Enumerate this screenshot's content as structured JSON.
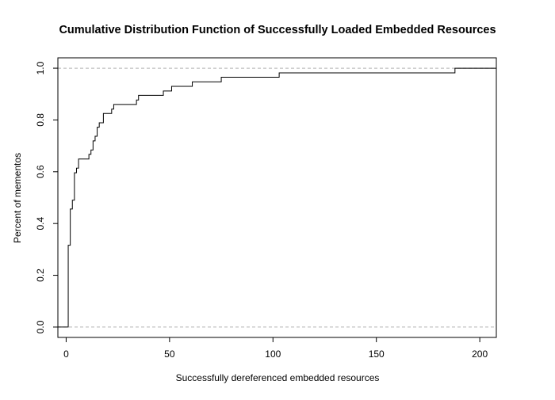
{
  "chart_data": {
    "type": "line",
    "step": true,
    "title": "Cumulative Distribution Function of Successfully Loaded Embedded Resources",
    "xlabel": "Successfully dereferenced embedded resources",
    "ylabel": "Percent of mementos",
    "xlim": [
      -4,
      208
    ],
    "ylim": [
      -0.04,
      1.04
    ],
    "xticks": [
      0,
      50,
      100,
      150,
      200
    ],
    "xtick_labels": [
      "0",
      "50",
      "100",
      "150",
      "200"
    ],
    "yticks": [
      0.0,
      0.2,
      0.4,
      0.6,
      0.8,
      1.0
    ],
    "ytick_labels": [
      "0.0",
      "0.2",
      "0.4",
      "0.6",
      "0.8",
      "1.0"
    ],
    "reference_lines": [
      0.0,
      1.0
    ],
    "grid": false,
    "line_color": "#000000",
    "reference_line_color": "#b4b4b4",
    "series": [
      {
        "x": [
          1,
          2,
          3,
          4,
          5,
          6,
          8,
          11,
          12,
          13,
          14,
          15,
          16,
          18,
          19,
          22,
          23,
          34,
          35,
          47,
          51,
          61,
          75,
          103,
          188
        ],
        "y": [
          0.316,
          0.456,
          0.49,
          0.596,
          0.614,
          0.649,
          0.649,
          0.667,
          0.684,
          0.719,
          0.737,
          0.772,
          0.789,
          0.825,
          0.825,
          0.842,
          0.86,
          0.877,
          0.895,
          0.912,
          0.93,
          0.947,
          0.965,
          0.982,
          1.0
        ]
      }
    ]
  }
}
